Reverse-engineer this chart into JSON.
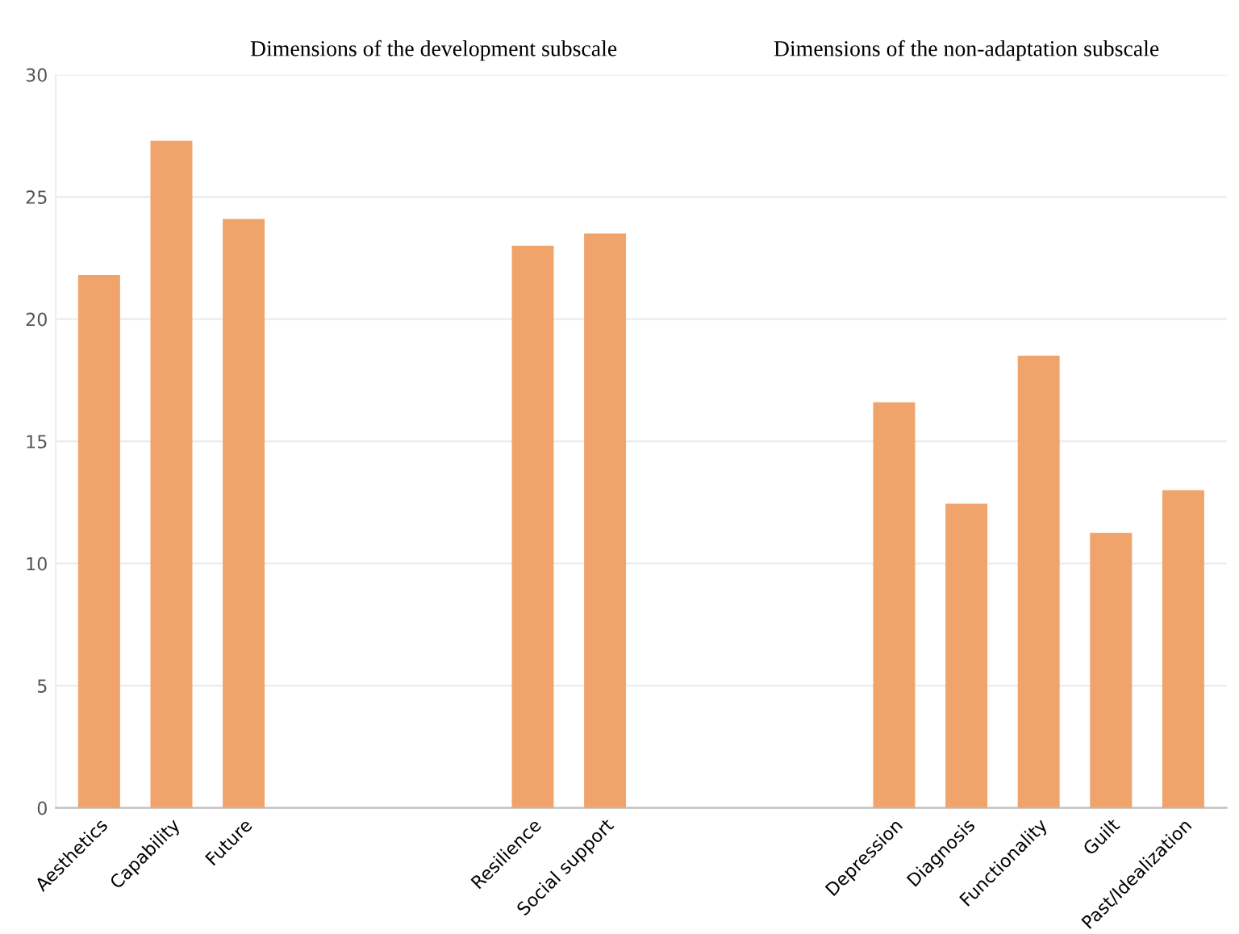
{
  "chart_data": {
    "type": "bar",
    "categories": [
      "Aesthetics",
      "Capability",
      "Future",
      null,
      null,
      null,
      "Resilience",
      "Social support",
      null,
      null,
      null,
      "Depression",
      "Diagnosis",
      "Functionality",
      "Guilt",
      "Past/Idealization"
    ],
    "values": [
      21.8,
      27.3,
      24.1,
      null,
      null,
      null,
      23.0,
      23.5,
      null,
      null,
      null,
      16.6,
      12.45,
      18.5,
      11.25,
      13.0
    ],
    "color": "#f0a46c",
    "ylim": [
      0,
      30
    ],
    "yticks": [
      0,
      5,
      10,
      15,
      20,
      25,
      30
    ],
    "grid": "y",
    "annotations": [
      "Dimensions of the development subscale",
      "Dimensions of the non-adaptation subscale"
    ]
  }
}
